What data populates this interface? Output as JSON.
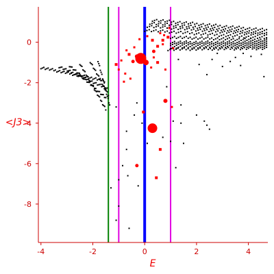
{
  "chart_data": {
    "type": "scatter",
    "title": "",
    "xlabel": "E",
    "ylabel": "<J3>",
    "xlim": [
      -4.1,
      4.75
    ],
    "ylim": [
      -9.9,
      1.75
    ],
    "x_ticks": [
      -4,
      -2,
      0,
      2,
      4
    ],
    "y_ticks": [
      0,
      -2,
      -4,
      -6,
      -8
    ],
    "grid": false,
    "legend": "none",
    "colors": {
      "axis": "#cc0000",
      "tick_label": "#cc0000",
      "axis_title": "#ee0000",
      "points_black": "#000000",
      "points_red": "#ff0000"
    },
    "vlines": [
      {
        "x": -1.4,
        "color": "#008000",
        "width": 2
      },
      {
        "x": -1.0,
        "color": "#e000e0",
        "width": 2
      },
      {
        "x": 0.0,
        "color": "#0000ff",
        "width": 4
      },
      {
        "x": 1.0,
        "color": "#e000e0",
        "width": 2
      }
    ],
    "black_bands": [
      {
        "x0": -4.0,
        "y0": -1.25,
        "x1": -1.55,
        "y1": -1.9,
        "n": 45
      },
      {
        "x0": -3.3,
        "y0": -1.2,
        "x1": -1.45,
        "y1": -2.3,
        "n": 36
      },
      {
        "x0": -2.9,
        "y0": -1.15,
        "x1": -1.5,
        "y1": -2.75,
        "n": 30
      },
      {
        "x0": -2.5,
        "y0": -1.05,
        "x1": -1.5,
        "y1": -3.3,
        "n": 26
      },
      {
        "x0": -2.1,
        "y0": -0.95,
        "x1": -1.4,
        "y1": -2.6,
        "n": 18
      },
      {
        "x0": -1.8,
        "y0": -0.9,
        "x1": -1.35,
        "y1": -3.1,
        "n": 16
      },
      {
        "x0": 0.3,
        "y0": 1.1,
        "x1": 4.7,
        "y1": 0.6,
        "n": 55
      },
      {
        "x0": 0.2,
        "y0": 0.95,
        "x1": 4.7,
        "y1": 0.45,
        "n": 55
      },
      {
        "x0": 0.1,
        "y0": 0.8,
        "x1": 4.7,
        "y1": 0.35,
        "n": 55
      },
      {
        "x0": 0.0,
        "y0": 0.6,
        "x1": 4.7,
        "y1": 0.2,
        "n": 55
      },
      {
        "x0": 1.0,
        "y0": 0.25,
        "x1": 4.7,
        "y1": 0.1,
        "n": 50
      },
      {
        "x0": 1.0,
        "y0": 0.0,
        "x1": 4.7,
        "y1": 0.0,
        "n": 50
      },
      {
        "x0": 1.0,
        "y0": -0.1,
        "x1": 4.7,
        "y1": -0.1,
        "n": 50
      },
      {
        "x0": 1.0,
        "y0": -0.25,
        "x1": 4.7,
        "y1": -0.2,
        "n": 50
      },
      {
        "x0": 0.9,
        "y0": -0.35,
        "x1": 4.7,
        "y1": -0.3,
        "n": 50
      }
    ],
    "black_points": [
      [
        2.1,
        -1.1
      ],
      [
        2.6,
        -0.85
      ],
      [
        3.0,
        -1.2
      ],
      [
        3.3,
        -0.95
      ],
      [
        3.7,
        -1.15
      ],
      [
        4.1,
        -0.7
      ],
      [
        4.6,
        -1.7
      ],
      [
        2.4,
        -1.6
      ],
      [
        3.8,
        -0.55
      ],
      [
        4.5,
        -0.6
      ],
      [
        2.8,
        -0.55
      ],
      [
        3.5,
        -0.75
      ],
      [
        1.3,
        -0.85
      ],
      [
        -0.3,
        -3.0
      ],
      [
        -0.4,
        -3.6
      ],
      [
        -0.7,
        -4.4
      ],
      [
        -0.1,
        -4.0
      ],
      [
        -0.7,
        -5.3
      ],
      [
        0.1,
        -5.0
      ],
      [
        -0.85,
        -6.1
      ],
      [
        -0.65,
        -6.6
      ],
      [
        -1.3,
        -7.2
      ],
      [
        -1.0,
        -8.1
      ],
      [
        -1.1,
        -8.8
      ],
      [
        -0.6,
        -9.2
      ],
      [
        -1.0,
        -6.8
      ],
      [
        -0.25,
        -7.1
      ],
      [
        0.7,
        -4.7
      ],
      [
        1.0,
        -4.9
      ],
      [
        1.4,
        -4.0
      ],
      [
        1.5,
        -5.0
      ],
      [
        1.2,
        -6.2
      ],
      [
        2.3,
        -3.9
      ],
      [
        2.4,
        -4.1
      ],
      [
        2.5,
        -4.3
      ],
      [
        2.0,
        -3.6
      ],
      [
        1.4,
        -3.1
      ],
      [
        1.1,
        -3.9
      ],
      [
        0.85,
        -2.2
      ],
      [
        -1.1,
        -3.2
      ]
    ],
    "red_points": [
      {
        "x": -0.15,
        "y": -0.8,
        "r": 8
      },
      {
        "x": 0.3,
        "y": -4.25,
        "r": 7
      },
      {
        "x": 0.05,
        "y": -1.0,
        "r": 4
      },
      {
        "x": -0.3,
        "y": -0.7,
        "r": 3
      },
      {
        "x": -0.45,
        "y": -0.95,
        "r": 2.5
      },
      {
        "x": -0.6,
        "y": -0.6,
        "r": 2
      },
      {
        "x": 0.35,
        "y": -0.45,
        "r": 2.5
      },
      {
        "x": 0.5,
        "y": -0.2,
        "r": 2
      },
      {
        "x": 0.7,
        "y": 0.1,
        "r": 2
      },
      {
        "x": 0.9,
        "y": 0.25,
        "r": 2
      },
      {
        "x": 0.3,
        "y": 0.1,
        "r": 2
      },
      {
        "x": 0.1,
        "y": 0.3,
        "r": 1.5
      },
      {
        "x": -0.4,
        "y": -0.25,
        "r": 1.5
      },
      {
        "x": -0.7,
        "y": -0.4,
        "r": 1.5
      },
      {
        "x": -0.9,
        "y": -0.9,
        "r": 1.5
      },
      {
        "x": -1.1,
        "y": -1.1,
        "r": 2
      },
      {
        "x": -1.0,
        "y": -1.35,
        "r": 1.5
      },
      {
        "x": -0.75,
        "y": -1.55,
        "r": 1.5
      },
      {
        "x": -0.55,
        "y": -1.8,
        "r": 1.5
      },
      {
        "x": -0.8,
        "y": -1.95,
        "r": 1.5
      },
      {
        "x": 0.5,
        "y": -1.0,
        "r": 2
      },
      {
        "x": 0.7,
        "y": -0.1,
        "r": 1.5
      },
      {
        "x": 0.95,
        "y": 0.7,
        "r": 1.5
      },
      {
        "x": 0.6,
        "y": 0.45,
        "r": 1.5
      },
      {
        "x": -0.2,
        "y": 0.15,
        "r": 1.5
      },
      {
        "x": 0.8,
        "y": -1.35,
        "r": 1.5
      },
      {
        "x": -0.05,
        "y": -3.45,
        "r": 2
      },
      {
        "x": 0.6,
        "y": -5.3,
        "r": 2
      },
      {
        "x": -0.3,
        "y": -6.1,
        "r": 2.5
      },
      {
        "x": 0.45,
        "y": -6.7,
        "r": 2
      },
      {
        "x": 0.8,
        "y": -2.9,
        "r": 3
      },
      {
        "x": 1.05,
        "y": -3.2,
        "r": 1.5
      },
      {
        "x": 0.35,
        "y": -0.75,
        "r": 1.5
      },
      {
        "x": 0.25,
        "y": -1.25,
        "r": 1.5
      },
      {
        "x": 0.75,
        "y": 0.35,
        "r": 1.5
      },
      {
        "x": 1.1,
        "y": -0.3,
        "r": 1.5
      }
    ]
  }
}
